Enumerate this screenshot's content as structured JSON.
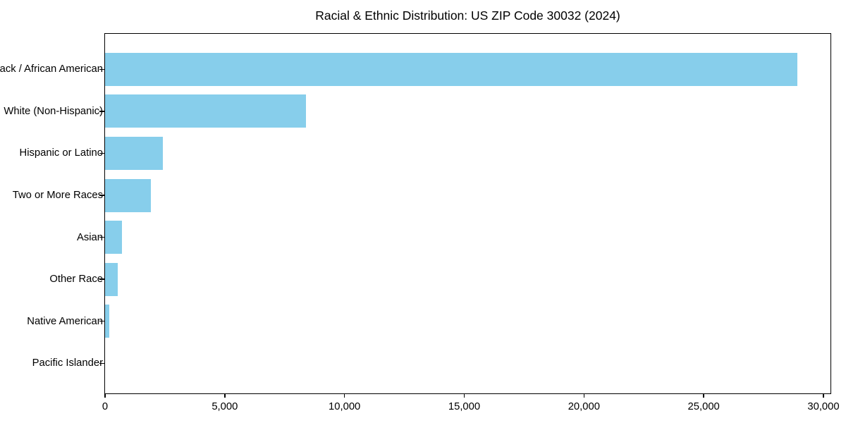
{
  "title": "Racial & Ethnic Distribution: US ZIP Code 30032 (2024)",
  "colors": {
    "bar": "#87CEEB",
    "axis": "#000000",
    "text": "#000000",
    "background": "#FFFFFF"
  },
  "chart_data": {
    "type": "bar",
    "orientation": "horizontal",
    "title": "Racial & Ethnic Distribution: US ZIP Code 30032 (2024)",
    "categories": [
      "Black / African American",
      "White (Non-Hispanic)",
      "Hispanic or Latino",
      "Two or More Races",
      "Asian",
      "Other Race",
      "Native American",
      "Pacific Islander"
    ],
    "values": [
      28900,
      8400,
      2400,
      1900,
      700,
      530,
      180,
      0
    ],
    "xlabel": "",
    "ylabel": "",
    "xlim": [
      0,
      30320
    ],
    "xticks": [
      0,
      5000,
      10000,
      15000,
      20000,
      25000,
      30000
    ],
    "xtick_labels": [
      "0",
      "5,000",
      "10,000",
      "15,000",
      "20,000",
      "25,000",
      "30,000"
    ],
    "grid": false,
    "legend": null,
    "bar_color": "#87CEEB"
  }
}
